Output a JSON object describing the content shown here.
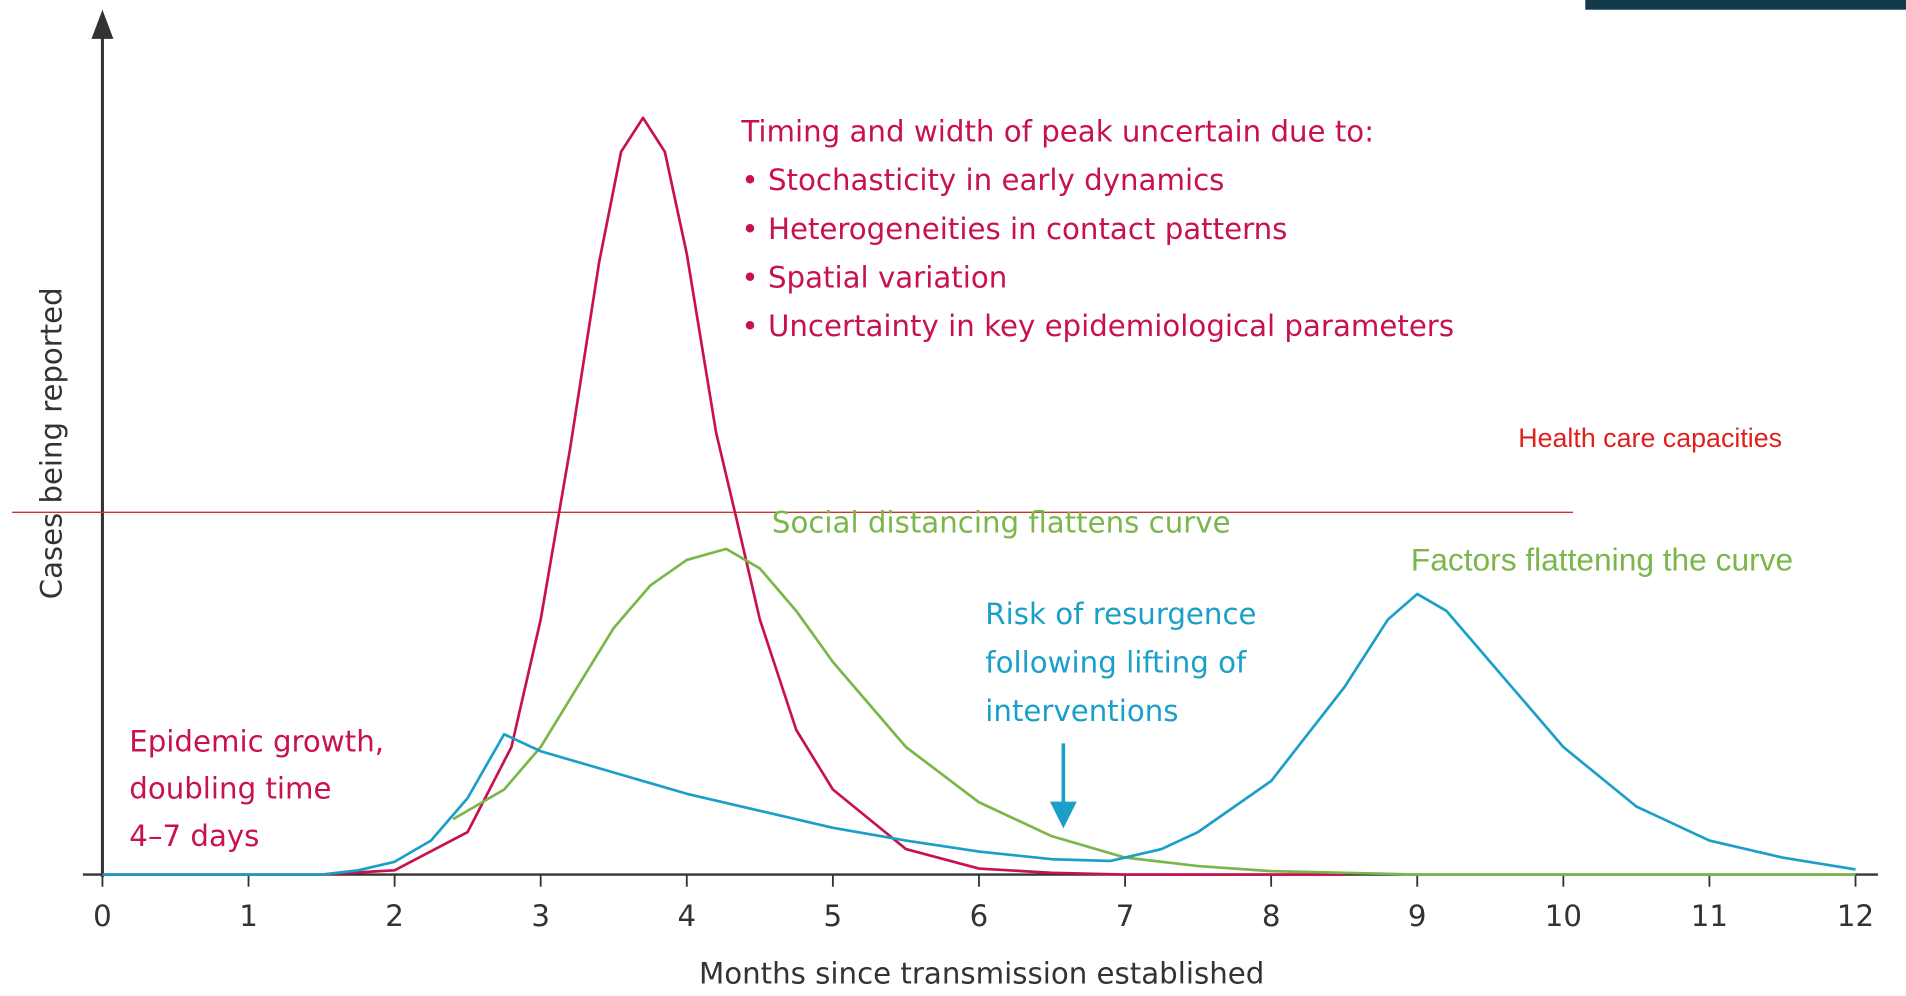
{
  "chart_data": {
    "type": "line",
    "x_label": "Months since transmission established",
    "y_label": "Cases being reported",
    "xlim": [
      0,
      12.15
    ],
    "ylim": [
      0,
      100
    ],
    "xticks": [
      0,
      1,
      2,
      3,
      4,
      5,
      6,
      7,
      8,
      9,
      10,
      11,
      12
    ],
    "series": [
      {
        "color": "#c8124e",
        "x": [
          0,
          1.5,
          2.0,
          2.5,
          2.8,
          3.0,
          3.2,
          3.4,
          3.55,
          3.7,
          3.85,
          4.0,
          4.2,
          4.33,
          4.5,
          4.75,
          5.0,
          5.5,
          6.0,
          6.5,
          7.0,
          8.5
        ],
        "values": [
          0,
          0,
          0.5,
          5,
          15,
          30,
          50,
          72,
          85,
          89,
          85,
          73,
          52,
          42.6,
          30,
          17,
          10,
          3,
          0.7,
          0.2,
          0,
          0
        ]
      },
      {
        "color": "#7ab648",
        "x": [
          2.4,
          2.75,
          3.0,
          3.25,
          3.5,
          3.75,
          4.0,
          4.27,
          4.5,
          4.75,
          5.0,
          5.5,
          6.0,
          6.5,
          7.0,
          7.5,
          8.0,
          8.5,
          9.0,
          12.0
        ],
        "values": [
          6.5,
          10,
          15,
          22,
          29,
          34,
          37,
          38.3,
          36,
          31,
          25,
          15,
          8.5,
          4.5,
          2,
          1,
          0.4,
          0.2,
          0,
          0
        ]
      },
      {
        "color": "#1a9fc9",
        "x": [
          0,
          1.5,
          1.75,
          2.0,
          2.25,
          2.5,
          2.75,
          3.0,
          3.5,
          4.0,
          4.5,
          5.0,
          5.5,
          6.0,
          6.5,
          6.9,
          7.25,
          7.5,
          8.0,
          8.5,
          8.8,
          9.0,
          9.2,
          9.5,
          10.0,
          10.5,
          11.0,
          11.5,
          12.0
        ],
        "values": [
          0,
          0,
          0.5,
          1.5,
          4,
          9,
          16.5,
          14.5,
          12,
          9.5,
          7.5,
          5.5,
          4,
          2.7,
          1.8,
          1.6,
          3,
          5,
          11,
          22,
          30,
          33,
          31,
          25,
          15,
          8,
          4,
          2,
          0.6
        ]
      }
    ],
    "capacity": {
      "label": "Health care capacities",
      "value": 42.6,
      "color": "#e0201e"
    },
    "annotations": [
      {
        "color": "#c8124e",
        "lines": [
          "Timing and width of peak uncertain due to:",
          "• Stochasticity in early dynamics",
          "• Heterogeneities in contact patterns",
          "• Spatial variation",
          "• Uncertainty in key epidemiological parameters"
        ]
      },
      {
        "color": "#7ab648",
        "lines": [
          "Social distancing flattens curve"
        ]
      },
      {
        "color": "#7ab648",
        "lines": [
          "Factors flattening the curve"
        ]
      },
      {
        "color": "#1a9fc9",
        "lines": [
          "Risk of resurgence",
          "following lifting of",
          "interventions"
        ]
      },
      {
        "color": "#c8124e",
        "lines": [
          "Epidemic growth,",
          "doubling time",
          "4–7 days"
        ]
      }
    ]
  }
}
